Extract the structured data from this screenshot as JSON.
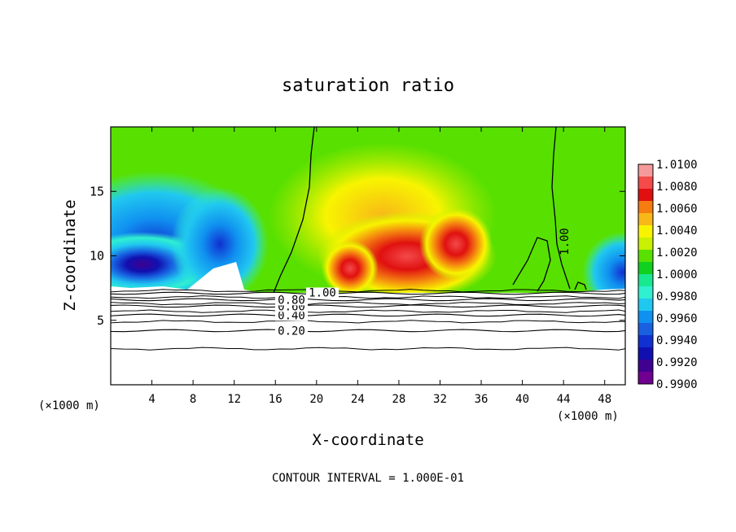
{
  "chart_data": {
    "type": "heatmap",
    "title": "saturation ratio",
    "xlabel": "X-coordinate",
    "ylabel": "Z-coordinate",
    "x_unit_left": "(×1000 m)",
    "x_unit_right": "(×1000 m)",
    "footer": "CONTOUR INTERVAL = 1.000E-01",
    "xlim": [
      0,
      50
    ],
    "ylim": [
      0,
      20
    ],
    "xticks": [
      4,
      8,
      12,
      16,
      20,
      24,
      28,
      32,
      36,
      40,
      44,
      48
    ],
    "yticks": [
      5,
      10,
      15
    ],
    "colorbar": {
      "levels": [
        "1.0100",
        "1.0080",
        "1.0060",
        "1.0040",
        "1.0020",
        "1.0000",
        "0.9980",
        "0.9960",
        "0.9940",
        "0.9920",
        "0.9900"
      ],
      "colors": [
        "#f59a9a",
        "#f44a4a",
        "#e01010",
        "#f47c10",
        "#f8b818",
        "#f8f400",
        "#c8f000",
        "#58e000",
        "#10d020",
        "#18e890",
        "#30f0d0",
        "#20c8f0",
        "#1090f0",
        "#1860e0",
        "#1030d0",
        "#1010b0",
        "#400090",
        "#700090"
      ]
    },
    "contours": [
      {
        "label": "0.20",
        "z": 4.2
      },
      {
        "label": "0.40",
        "z": 5.4
      },
      {
        "label": "0.60",
        "z": 6.1
      },
      {
        "label": "0.80",
        "z": 6.6
      },
      {
        "label": "1.00",
        "z": 7.1
      }
    ],
    "fields": {
      "dry": [
        {
          "x": 3,
          "z": 10.5,
          "level": 0.9905
        },
        {
          "x": 9,
          "z": 9.5,
          "level": 0.9915
        },
        {
          "x": 6,
          "z": 13.0,
          "level": 0.9935
        },
        {
          "x": 11,
          "z": 12.5,
          "level": 0.9945
        },
        {
          "x": 47,
          "z": 9.0,
          "level": 0.995
        }
      ],
      "moist": [
        {
          "x": 23,
          "z": 10.5,
          "level": 1.007
        },
        {
          "x": 26,
          "z": 10.0,
          "level": 1.0075
        },
        {
          "x": 29,
          "z": 11.5,
          "level": 1.0065
        },
        {
          "x": 32,
          "z": 10.0,
          "level": 1.0075
        },
        {
          "x": 27,
          "z": 14.5,
          "level": 1.0035
        }
      ]
    }
  }
}
